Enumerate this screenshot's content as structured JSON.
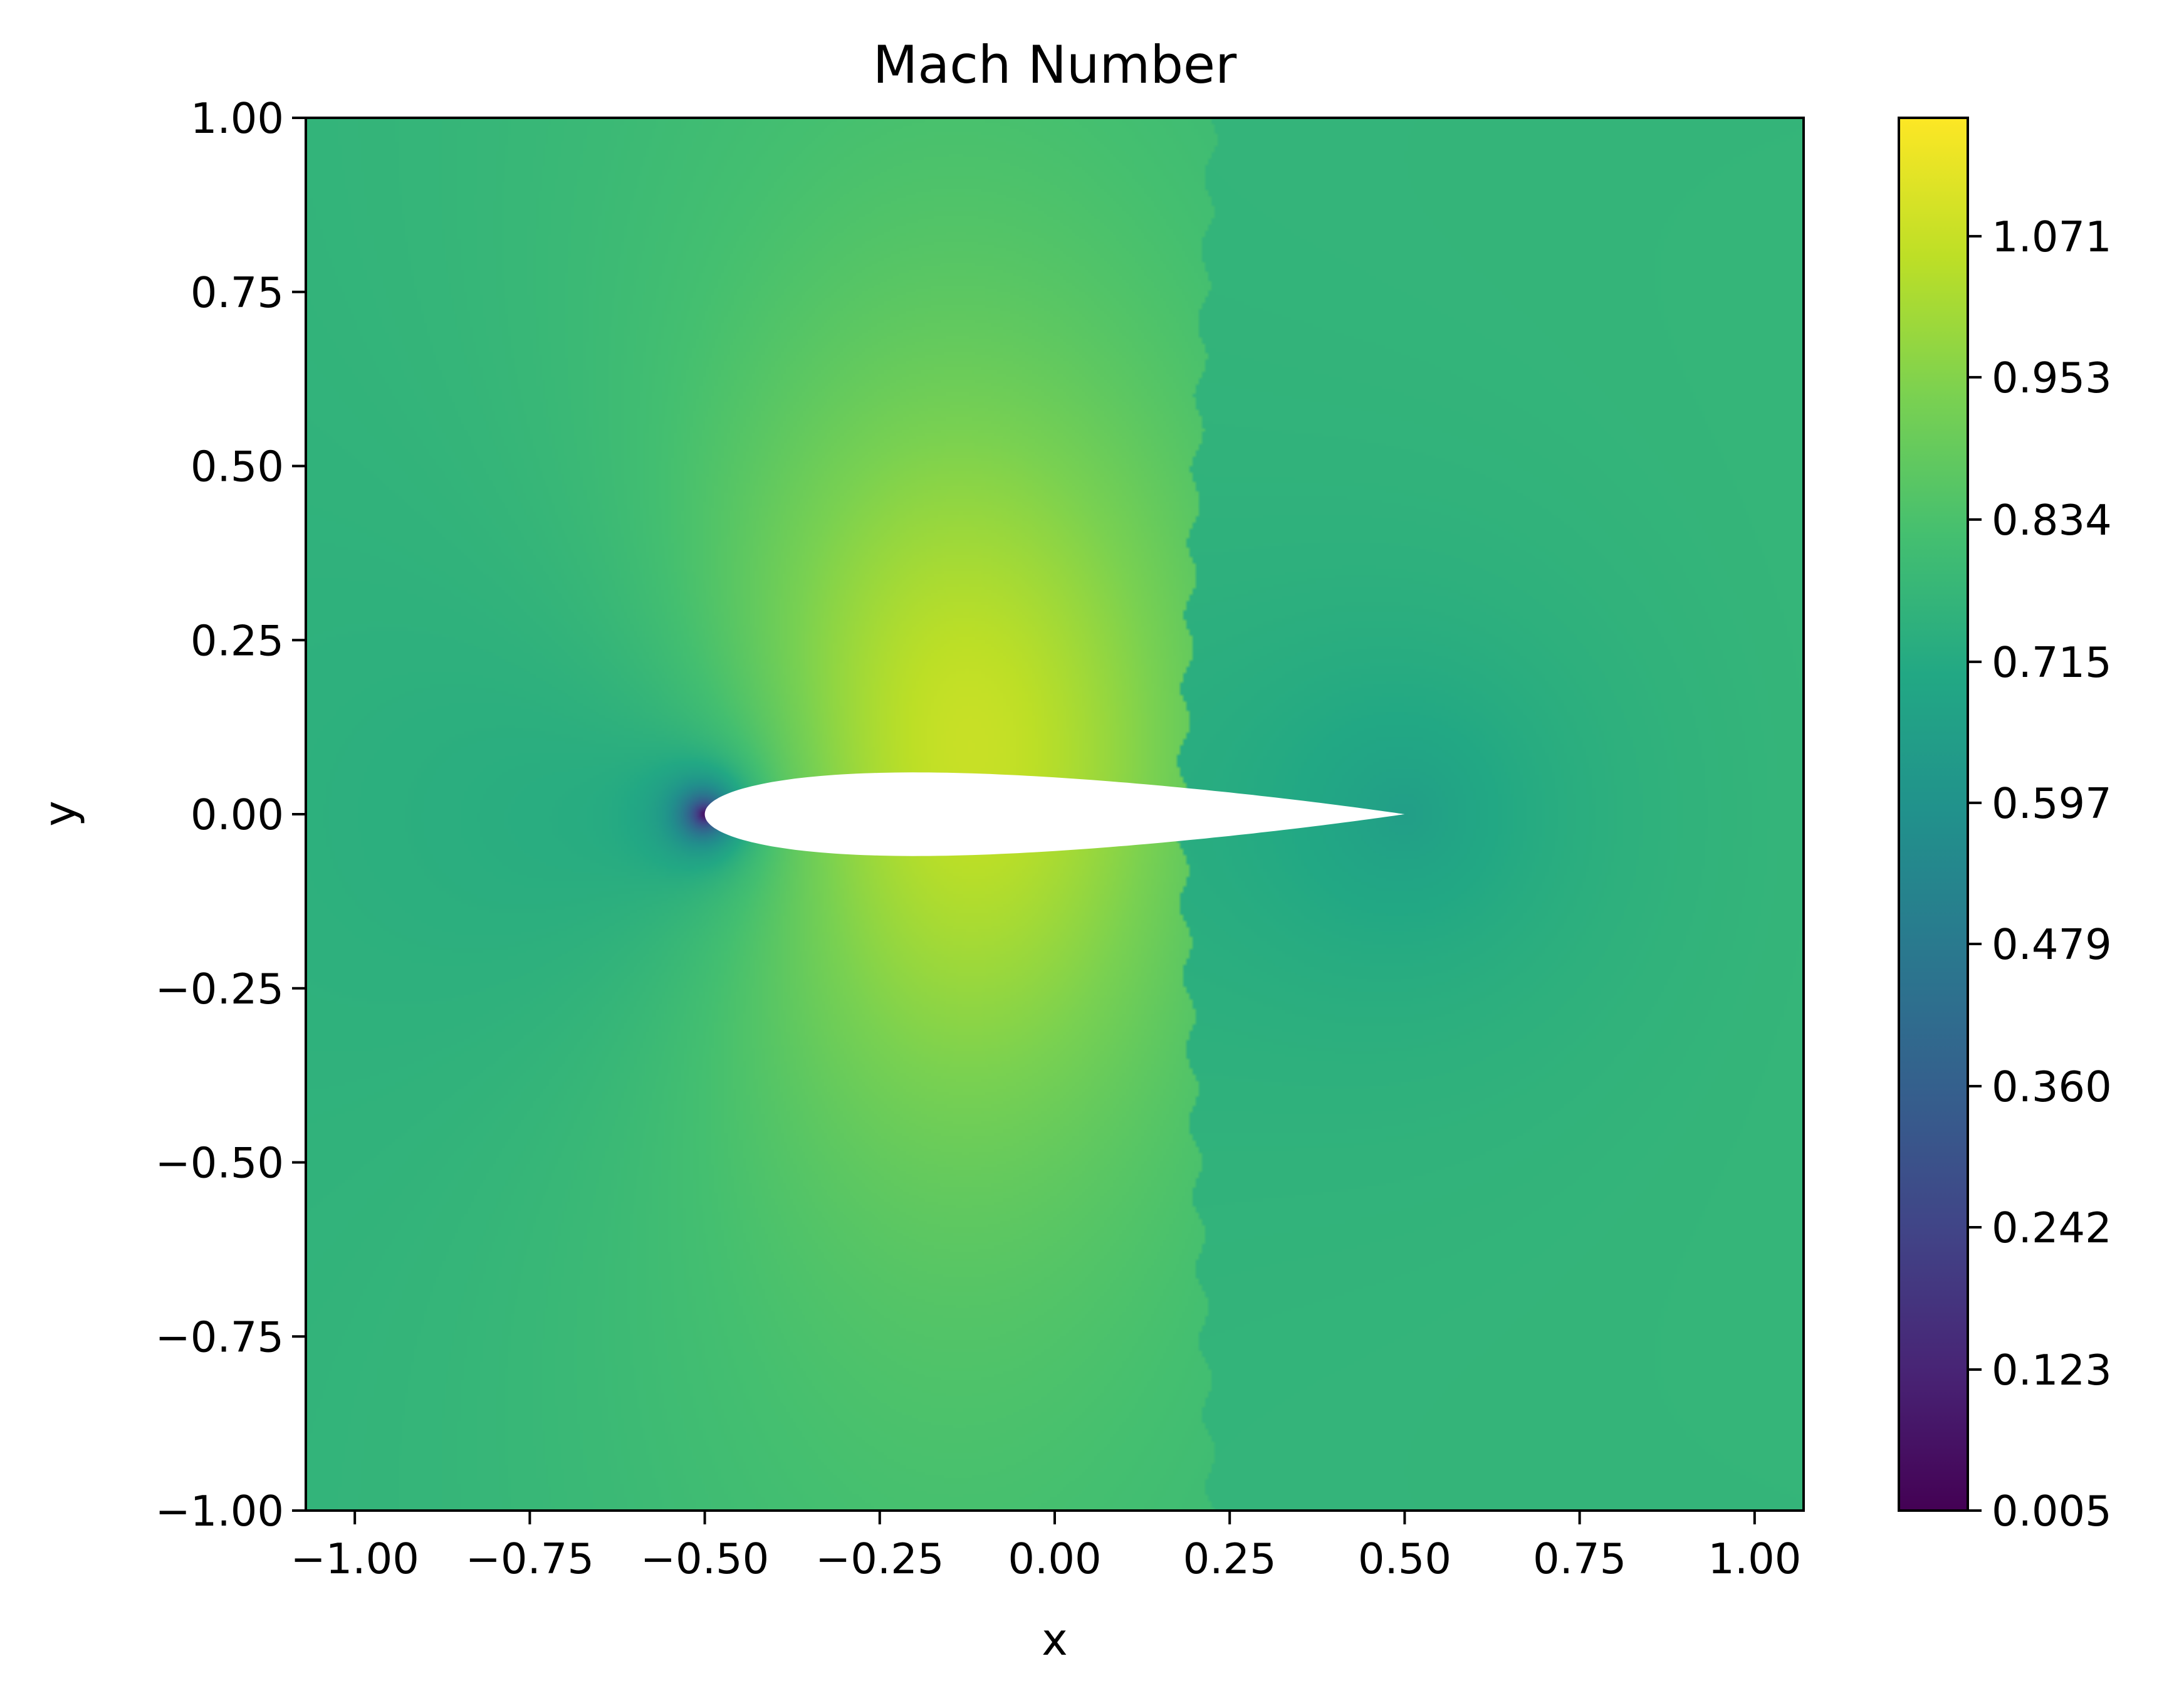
{
  "chart_data": {
    "type": "heatmap",
    "title": "Mach Number",
    "xlabel": "x",
    "ylabel": "y",
    "xlim": [
      -1.07,
      1.07
    ],
    "ylim": [
      -1.0,
      1.0
    ],
    "x_ticks": [
      -1.0,
      -0.75,
      -0.5,
      -0.25,
      0.0,
      0.25,
      0.5,
      0.75,
      1.0
    ],
    "x_tick_labels": [
      "−1.00",
      "−0.75",
      "−0.50",
      "−0.25",
      "0.00",
      "0.25",
      "0.50",
      "0.75",
      "1.00"
    ],
    "y_ticks": [
      1.0,
      0.75,
      0.5,
      0.25,
      0.0,
      -0.25,
      -0.5,
      -0.75,
      -1.0
    ],
    "y_tick_labels": [
      "1.00",
      "0.75",
      "0.50",
      "0.25",
      "0.00",
      "−0.25",
      "−0.50",
      "−0.75",
      "−1.00"
    ],
    "colormap": "viridis",
    "colorbar": {
      "min": 0.005,
      "max": 1.17,
      "ticks": [
        0.005,
        0.123,
        0.242,
        0.36,
        0.479,
        0.597,
        0.715,
        0.834,
        0.953,
        1.071
      ],
      "tick_labels": [
        "0.005",
        "0.123",
        "0.242",
        "0.360",
        "0.479",
        "0.597",
        "0.715",
        "0.834",
        "0.953",
        "1.071"
      ]
    },
    "field": {
      "freestream": 0.76,
      "supersonic_peak": 1.14,
      "peak_location": [
        -0.15,
        0.08
      ],
      "shock_x_at_airfoil": 0.18,
      "stagnation_leading_edge": [
        -0.5,
        0.0
      ],
      "stagnation_trailing_edge": [
        0.5,
        0.0
      ]
    },
    "airfoil": {
      "leading_edge": [
        -0.5,
        0.0
      ],
      "trailing_edge": [
        0.5,
        0.0
      ],
      "max_thickness": 0.12,
      "fill": "#ffffff"
    },
    "grid": false
  }
}
